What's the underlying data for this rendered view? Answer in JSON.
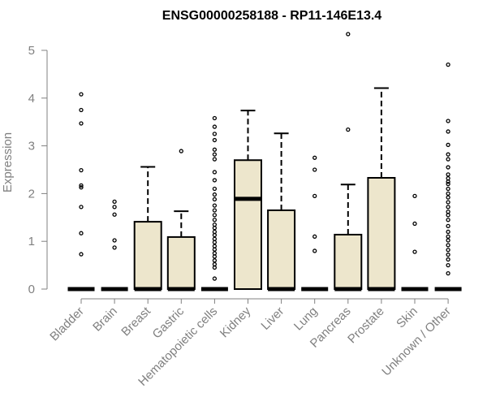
{
  "chart_data": {
    "type": "boxplot",
    "title": "ENSG00000258188 - RP11-146E13.4",
    "ylabel": "Expression",
    "xlabel": "",
    "ylim": [
      0,
      5
    ],
    "yticks": [
      0,
      1,
      2,
      3,
      4,
      5
    ],
    "grid": false,
    "box_color": "#ede6cc",
    "categories": [
      "Bladder",
      "Brain",
      "Breast",
      "Gastric",
      "Hematopoietic cells",
      "Kidney",
      "Liver",
      "Lung",
      "Pancreas",
      "Prostate",
      "Skin",
      "Unknown / Other"
    ],
    "boxes": [
      {
        "q1": 0,
        "median": 0,
        "q3": 0,
        "whisker_low": 0,
        "whisker_high": 0,
        "outliers": [
          0.73,
          1.17,
          1.72,
          2.13,
          2.17,
          2.49,
          3.47,
          3.75,
          4.08
        ]
      },
      {
        "q1": 0,
        "median": 0,
        "q3": 0,
        "whisker_low": 0,
        "whisker_high": 0,
        "outliers": [
          0.87,
          1.02,
          1.56,
          1.72,
          1.83
        ]
      },
      {
        "q1": 0,
        "median": 0,
        "q3": 1.41,
        "whisker_low": 0,
        "whisker_high": 2.56,
        "outliers": []
      },
      {
        "q1": 0,
        "median": 0,
        "q3": 1.09,
        "whisker_low": 0,
        "whisker_high": 1.63,
        "outliers": [
          2.89
        ]
      },
      {
        "q1": 0,
        "median": 0,
        "q3": 0,
        "whisker_low": 0,
        "whisker_high": 0,
        "outliers": [
          0.22,
          0.45,
          0.52,
          0.6,
          0.68,
          0.75,
          0.83,
          0.9,
          0.98,
          1.05,
          1.13,
          1.2,
          1.28,
          1.35,
          1.45,
          1.55,
          1.65,
          1.75,
          1.88,
          1.98,
          2.1,
          2.28,
          2.45,
          2.72,
          2.82,
          2.92,
          3.12,
          3.25,
          3.4,
          3.58
        ]
      },
      {
        "q1": 0,
        "median": 1.89,
        "q3": 2.7,
        "whisker_low": 0,
        "whisker_high": 3.74,
        "outliers": []
      },
      {
        "q1": 0,
        "median": 0,
        "q3": 1.65,
        "whisker_low": 0,
        "whisker_high": 3.26,
        "outliers": []
      },
      {
        "q1": 0,
        "median": 0,
        "q3": 0,
        "whisker_low": 0,
        "whisker_high": 0,
        "outliers": [
          0.8,
          1.1,
          1.95,
          2.5,
          2.75
        ]
      },
      {
        "q1": 0,
        "median": 0,
        "q3": 1.14,
        "whisker_low": 0,
        "whisker_high": 2.19,
        "outliers": [
          3.34,
          5.34
        ]
      },
      {
        "q1": 0,
        "median": 0,
        "q3": 2.33,
        "whisker_low": 0,
        "whisker_high": 4.21,
        "outliers": []
      },
      {
        "q1": 0,
        "median": 0,
        "q3": 0,
        "whisker_low": 0,
        "whisker_high": 0,
        "outliers": [
          0.78,
          1.37,
          1.95
        ]
      },
      {
        "q1": 0,
        "median": 0,
        "q3": 0,
        "whisker_low": 0,
        "whisker_high": 0,
        "outliers": [
          0.33,
          0.5,
          0.62,
          0.72,
          0.82,
          0.92,
          1.02,
          1.1,
          1.2,
          1.32,
          1.45,
          1.55,
          1.62,
          1.72,
          1.82,
          1.92,
          2.0,
          2.1,
          2.2,
          2.25,
          2.32,
          2.4,
          2.55,
          2.72,
          2.82,
          3.02,
          3.3,
          3.52,
          4.7
        ]
      }
    ]
  }
}
